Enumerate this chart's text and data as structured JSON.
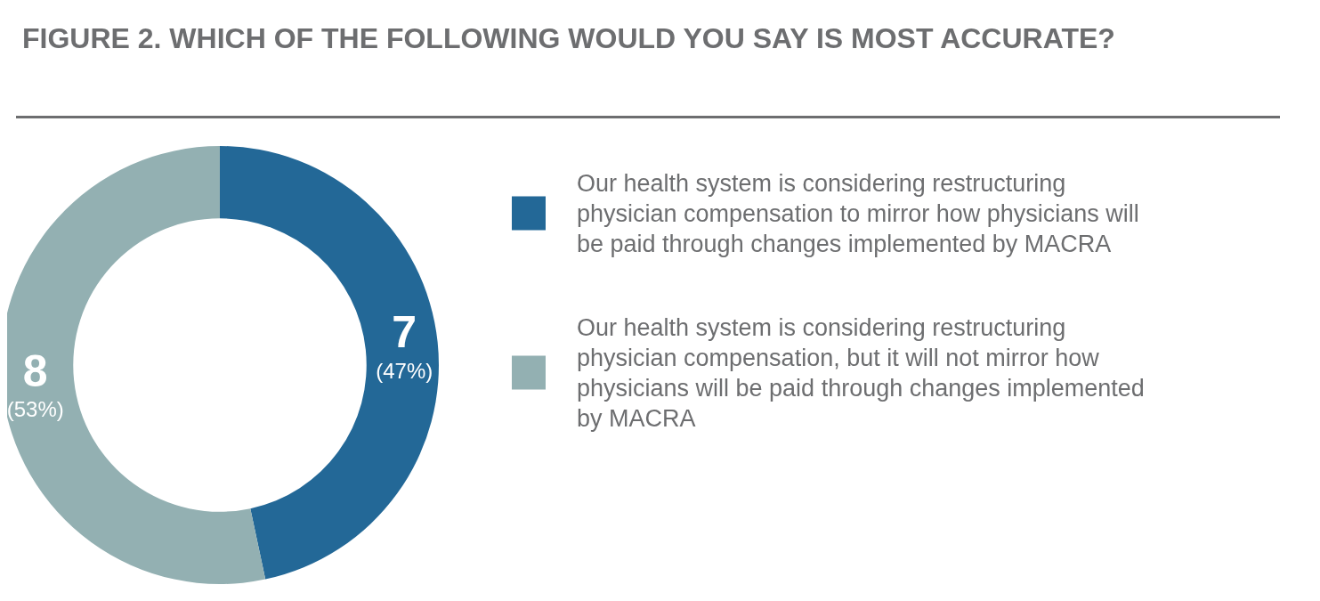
{
  "chart_data": {
    "type": "donut",
    "title": "FIGURE 2. WHICH OF THE FOLLOWING WOULD YOU SAY IS MOST ACCURATE?",
    "categories": [
      "Our health system is considering restructuring physician compensation to mirror how physicians will be paid through changes implemented by MACRA",
      "Our health system is considering restructuring physician compensation, but it will not mirror how physicians will be paid through changes implemented by MACRA"
    ],
    "values": [
      7,
      8
    ],
    "colors": [
      "#236897",
      "#93b0b2"
    ],
    "value_labels": [
      "7\n(47%)",
      "8\n(53%)"
    ],
    "legend": "right"
  }
}
